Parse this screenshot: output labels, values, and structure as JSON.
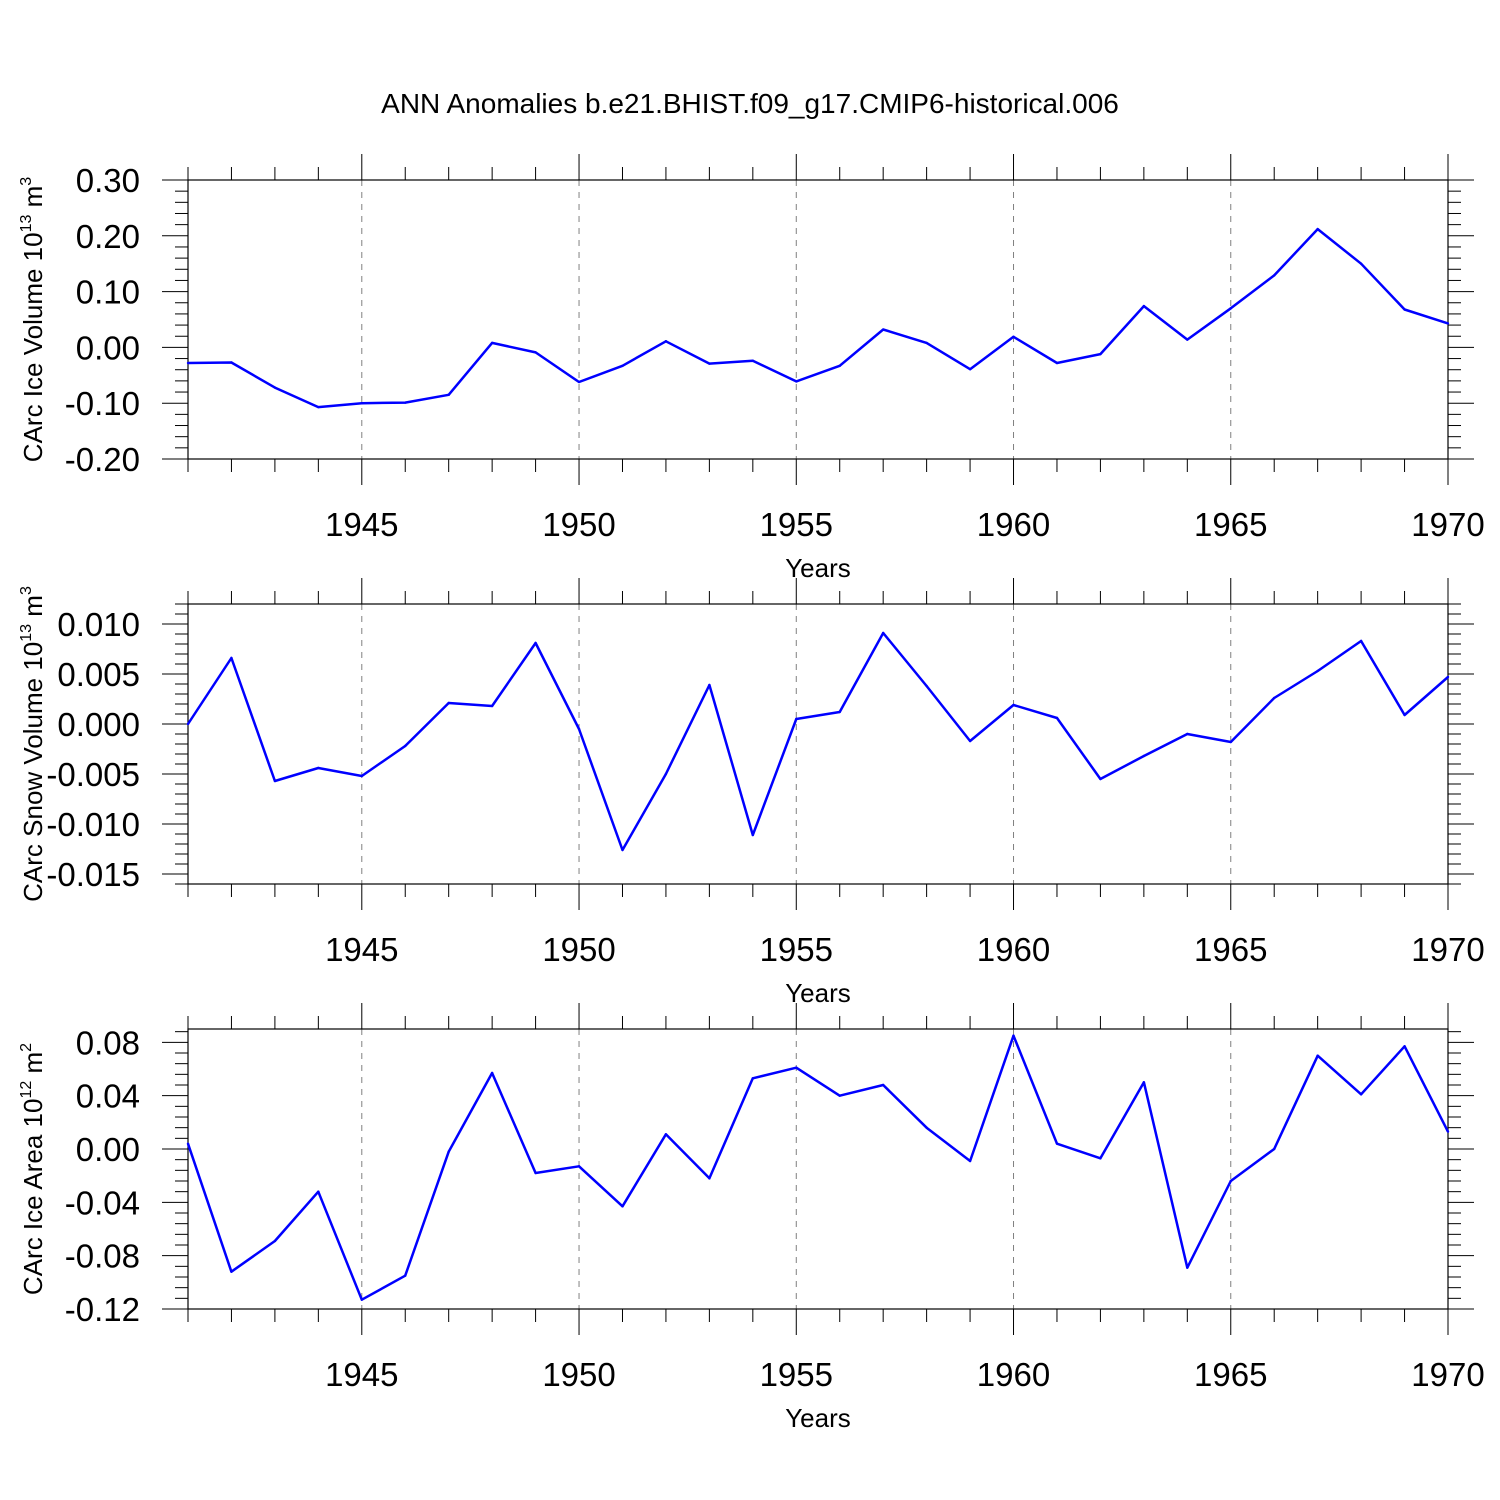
{
  "title": "ANN Anomalies b.e21.BHIST.f09_g17.CMIP6-historical.006",
  "colors": {
    "line": "#0000ff",
    "grid": "#808080",
    "axis": "#000000"
  },
  "chart_data": [
    {
      "type": "line",
      "ylabel_main": "CArc Ice Volume 10",
      "ylabel_exp": "13",
      "ylabel_unit": " m",
      "ylabel_unit_exp": "3",
      "xlabel": "Years",
      "xlim": [
        1941,
        1970
      ],
      "ylim": [
        -0.2,
        0.3
      ],
      "yticks": [
        -0.2,
        -0.1,
        0.0,
        0.1,
        0.2,
        0.3
      ],
      "ytick_labels": [
        "-0.20",
        "-0.10",
        "0.00",
        "0.10",
        "0.20",
        "0.30"
      ],
      "xticks": [
        1945,
        1950,
        1955,
        1960,
        1965,
        1970
      ],
      "xtick_labels": [
        "1945",
        "1950",
        "1955",
        "1960",
        "1965",
        "1970"
      ],
      "grid": "vertical dashed at major x ticks",
      "x": [
        1941,
        1942,
        1943,
        1944,
        1945,
        1946,
        1947,
        1948,
        1949,
        1950,
        1951,
        1952,
        1953,
        1954,
        1955,
        1956,
        1957,
        1958,
        1959,
        1960,
        1961,
        1962,
        1963,
        1964,
        1965,
        1966,
        1967,
        1968,
        1969,
        1970
      ],
      "values": [
        -0.028,
        -0.027,
        -0.072,
        -0.107,
        -0.1,
        -0.099,
        -0.085,
        0.008,
        -0.009,
        -0.062,
        -0.033,
        0.011,
        -0.029,
        -0.024,
        -0.061,
        -0.033,
        0.032,
        0.008,
        -0.039,
        0.019,
        -0.028,
        -0.012,
        0.074,
        0.014,
        0.07,
        0.129,
        0.212,
        0.15,
        0.068,
        0.043
      ]
    },
    {
      "type": "line",
      "ylabel_main": "CArc Snow Volume 10",
      "ylabel_exp": "13",
      "ylabel_unit": " m",
      "ylabel_unit_exp": "3",
      "xlabel": "Years",
      "xlim": [
        1941,
        1970
      ],
      "ylim": [
        -0.016,
        0.012
      ],
      "yticks": [
        -0.015,
        -0.01,
        -0.005,
        0.0,
        0.005,
        0.01
      ],
      "ytick_labels": [
        "-0.015",
        "-0.010",
        "-0.005",
        "0.000",
        "0.005",
        "0.010"
      ],
      "xticks": [
        1945,
        1950,
        1955,
        1960,
        1965,
        1970
      ],
      "xtick_labels": [
        "1945",
        "1950",
        "1955",
        "1960",
        "1965",
        "1970"
      ],
      "grid": "vertical dashed at major x ticks",
      "x": [
        1941,
        1942,
        1943,
        1944,
        1945,
        1946,
        1947,
        1948,
        1949,
        1950,
        1951,
        1952,
        1953,
        1954,
        1955,
        1956,
        1957,
        1958,
        1959,
        1960,
        1961,
        1962,
        1963,
        1964,
        1965,
        1966,
        1967,
        1968,
        1969,
        1970
      ],
      "values": [
        0.0,
        0.0066,
        -0.0057,
        -0.0044,
        -0.0052,
        -0.0022,
        0.0021,
        0.0018,
        0.0081,
        -0.0005,
        -0.0126,
        -0.005,
        0.0039,
        -0.0111,
        0.0005,
        0.0012,
        0.0091,
        0.0038,
        -0.0017,
        0.0019,
        0.0006,
        -0.0055,
        -0.0032,
        -0.001,
        -0.0018,
        0.0026,
        0.0053,
        0.0083,
        0.0009,
        0.0047
      ]
    },
    {
      "type": "line",
      "ylabel_main": "CArc Ice Area 10",
      "ylabel_exp": "12",
      "ylabel_unit": " m",
      "ylabel_unit_exp": "2",
      "xlabel": "Years",
      "xlim": [
        1941,
        1970
      ],
      "ylim": [
        -0.12,
        0.09
      ],
      "yticks": [
        -0.12,
        -0.08,
        -0.04,
        0.0,
        0.04,
        0.08
      ],
      "ytick_labels": [
        "-0.12",
        "-0.08",
        "-0.04",
        "0.00",
        "0.04",
        "0.08"
      ],
      "xticks": [
        1945,
        1950,
        1955,
        1960,
        1965,
        1970
      ],
      "xtick_labels": [
        "1945",
        "1950",
        "1955",
        "1960",
        "1965",
        "1970"
      ],
      "grid": "vertical dashed at major x ticks",
      "x": [
        1941,
        1942,
        1943,
        1944,
        1945,
        1946,
        1947,
        1948,
        1949,
        1950,
        1951,
        1952,
        1953,
        1954,
        1955,
        1956,
        1957,
        1958,
        1959,
        1960,
        1961,
        1962,
        1963,
        1964,
        1965,
        1966,
        1967,
        1968,
        1969,
        1970
      ],
      "values": [
        0.004,
        -0.092,
        -0.069,
        -0.032,
        -0.113,
        -0.095,
        -0.002,
        0.057,
        -0.018,
        -0.013,
        -0.043,
        0.011,
        -0.022,
        0.053,
        0.061,
        0.04,
        0.048,
        0.016,
        -0.009,
        0.085,
        0.004,
        -0.007,
        0.05,
        -0.089,
        -0.024,
        0.0,
        0.07,
        0.041,
        0.077,
        0.013
      ]
    }
  ]
}
